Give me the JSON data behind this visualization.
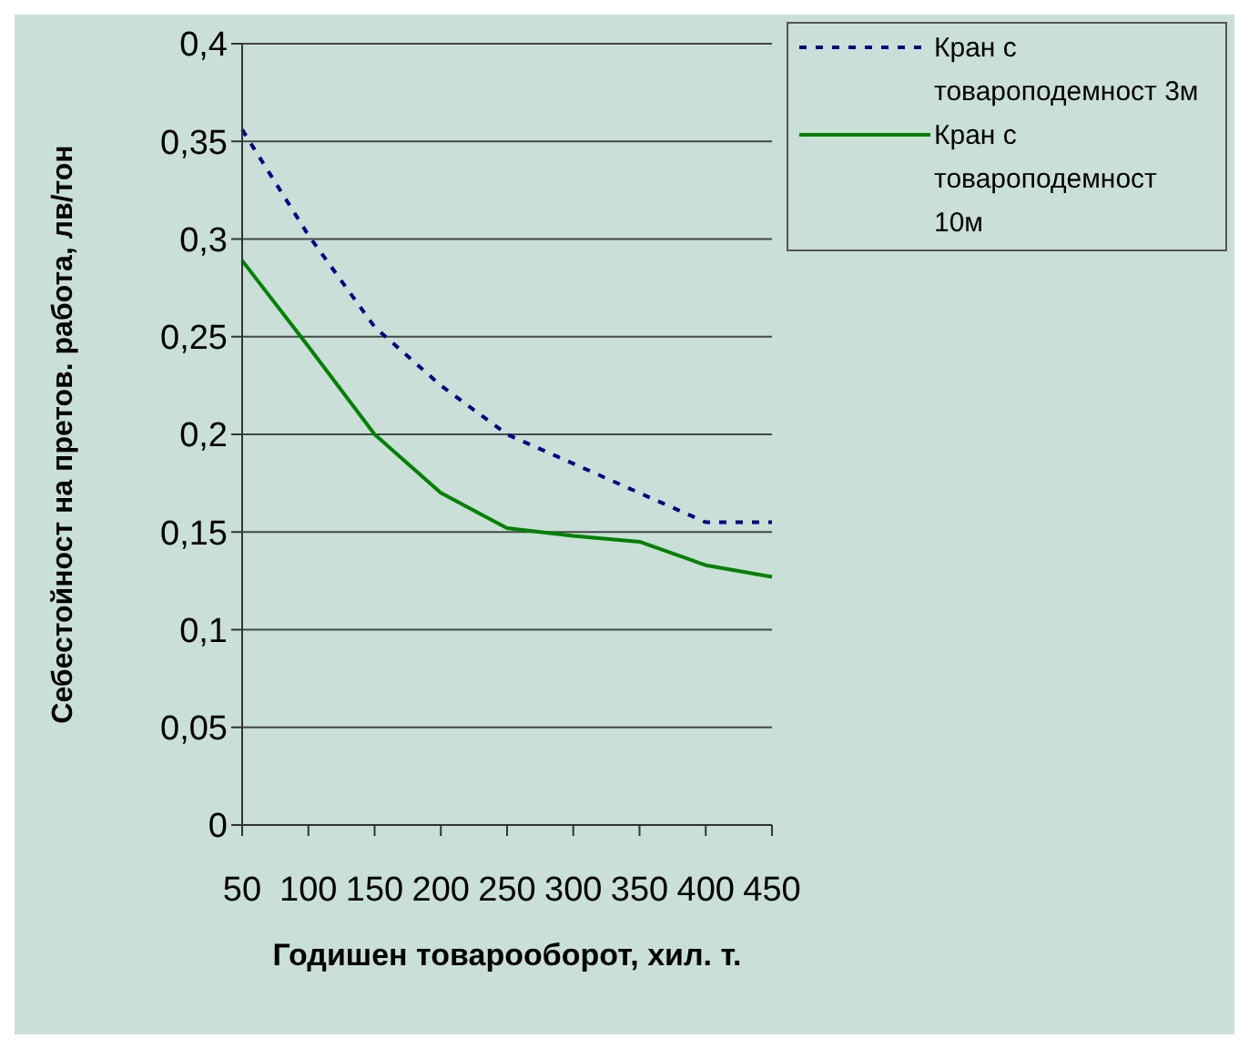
{
  "chart_data": {
    "type": "line",
    "xlabel": "Годишен товарооборот, хил. т.",
    "ylabel": "Себестойност на претов. работа, лв/тон",
    "categories": [
      "50",
      "100",
      "150",
      "200",
      "250",
      "300",
      "350",
      "400",
      "450"
    ],
    "series": [
      {
        "name": "Кран с товароподемност 3м",
        "color": "#000080",
        "line_style": "dashed",
        "values": [
          0.356,
          0.302,
          0.255,
          0.225,
          0.2,
          0.185,
          0.17,
          0.155,
          0.155
        ]
      },
      {
        "name": "Кран с товароподемност 10м",
        "color": "#008000",
        "line_style": "solid",
        "values": [
          0.289,
          0.245,
          0.2,
          0.17,
          0.152,
          0.148,
          0.145,
          0.133,
          0.127
        ]
      }
    ],
    "ylim": [
      0,
      0.4
    ],
    "yticks": [
      {
        "value": 0,
        "label": "0"
      },
      {
        "value": 0.05,
        "label": "0,05"
      },
      {
        "value": 0.1,
        "label": "0,1"
      },
      {
        "value": 0.15,
        "label": "0,15"
      },
      {
        "value": 0.2,
        "label": "0,2"
      },
      {
        "value": 0.25,
        "label": "0,25"
      },
      {
        "value": 0.3,
        "label": "0,3"
      },
      {
        "value": 0.35,
        "label": "0,35"
      },
      {
        "value": 0.4,
        "label": "0,4"
      }
    ],
    "grid": "y",
    "legend": "top right",
    "marker": "none"
  }
}
